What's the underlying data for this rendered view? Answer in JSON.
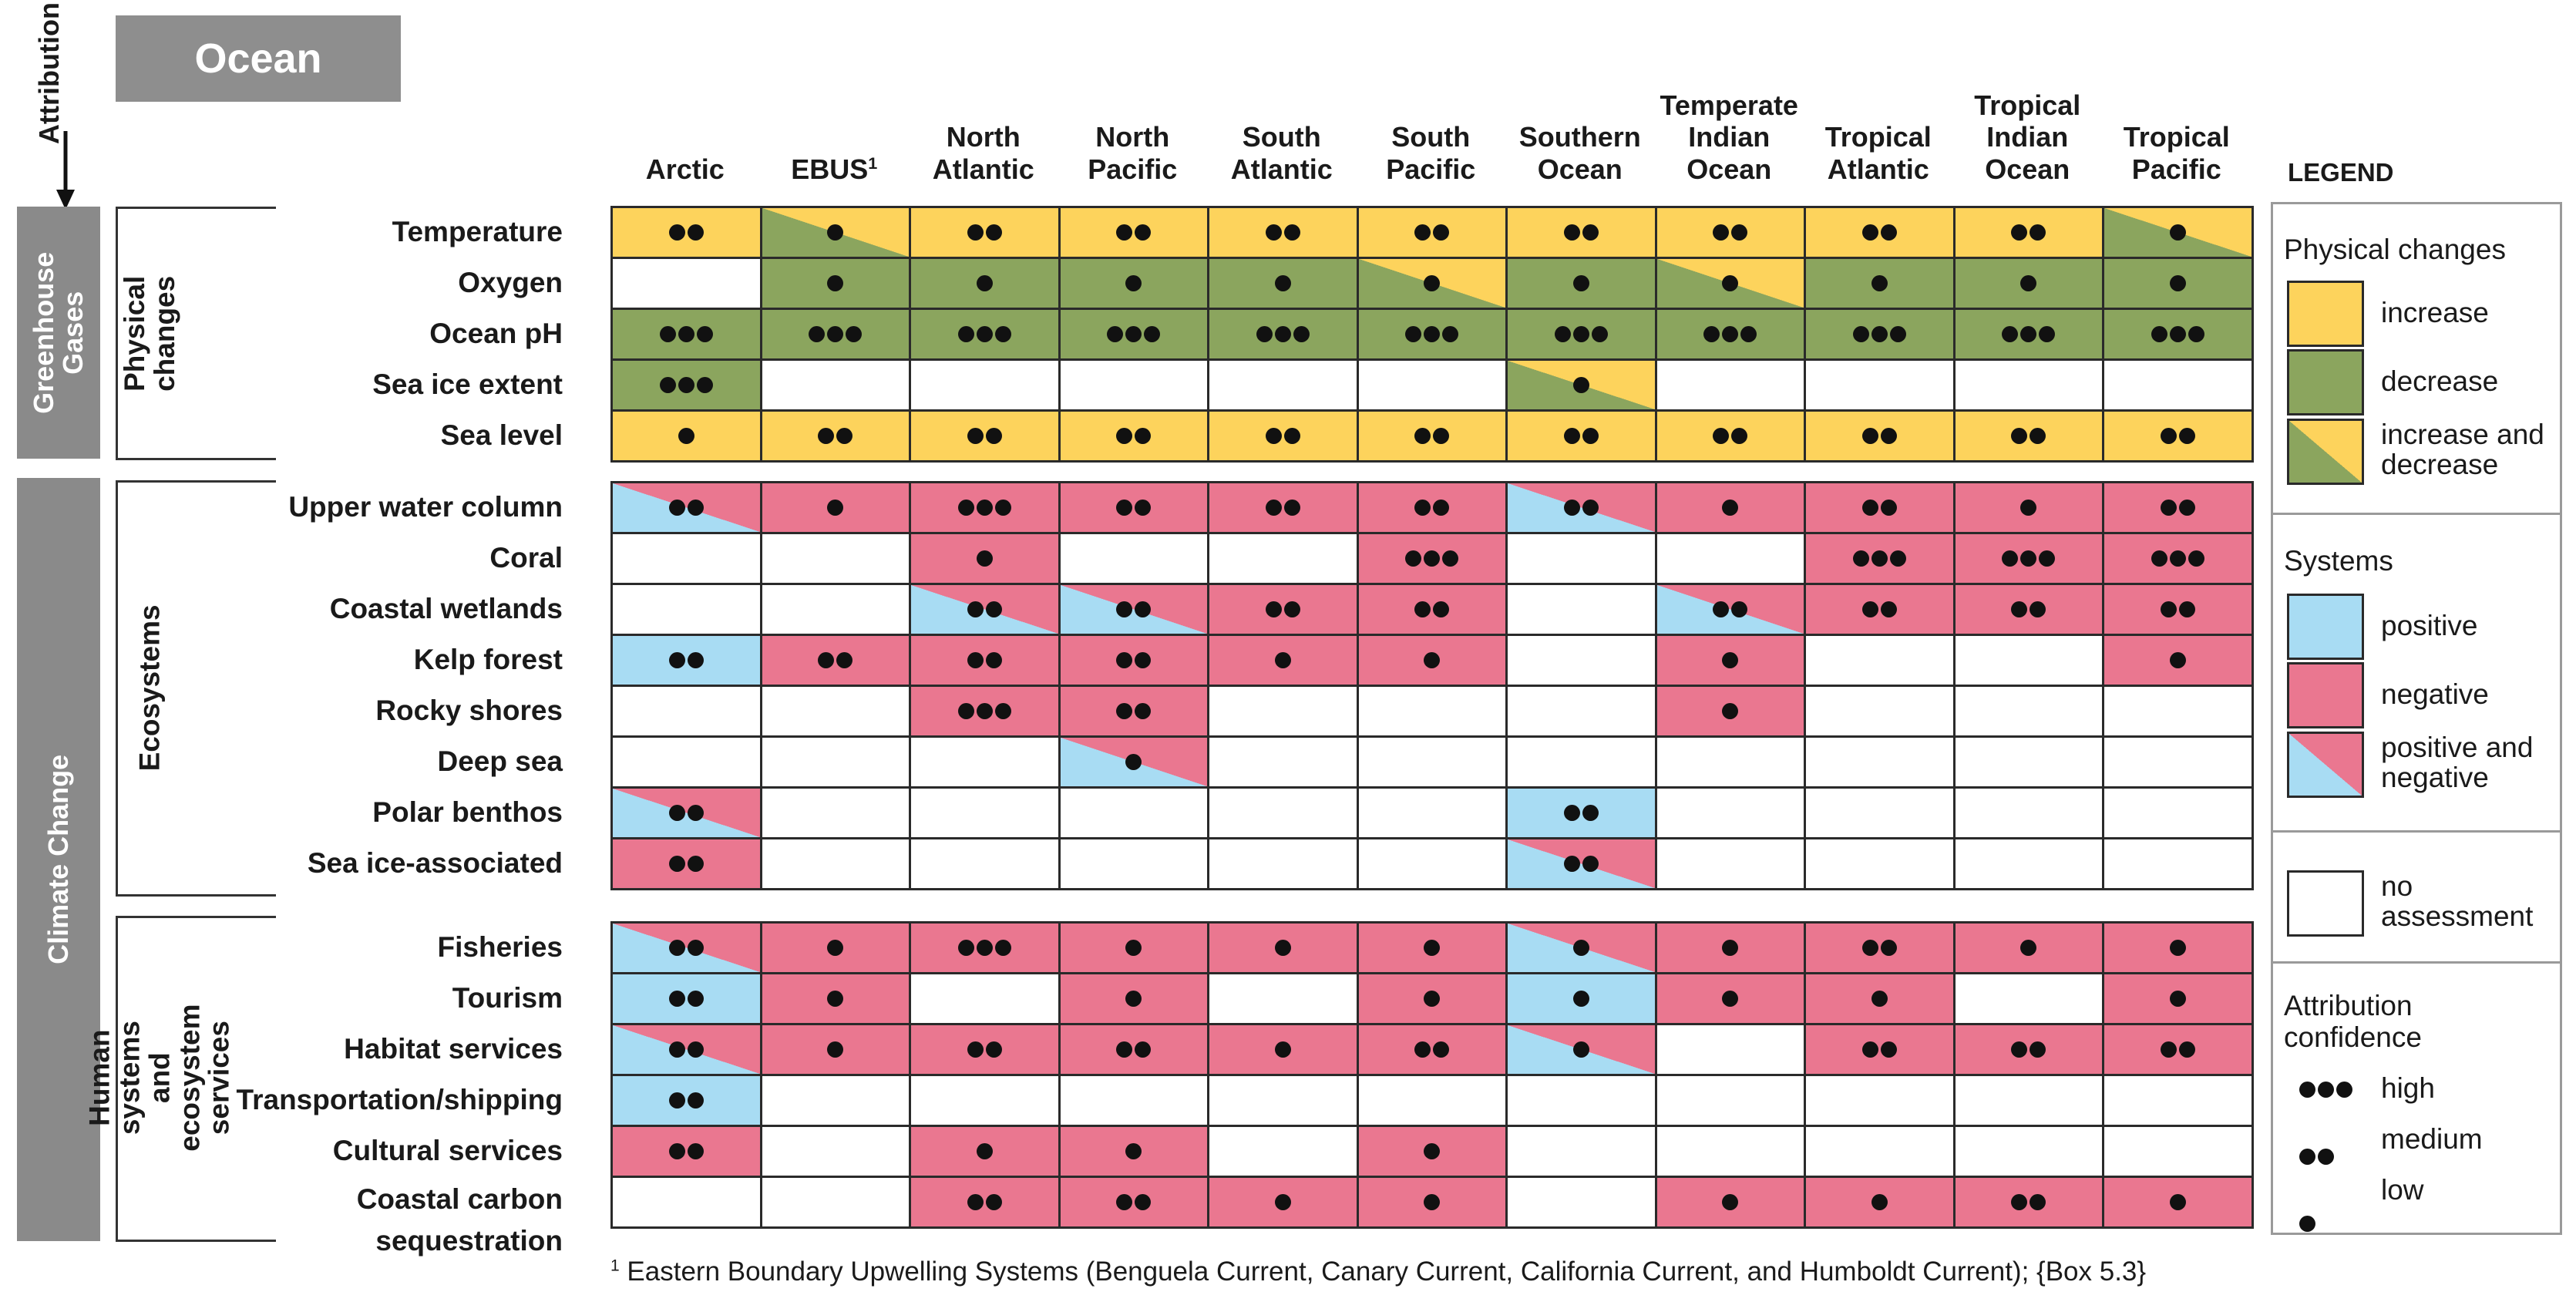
{
  "title": "Ocean",
  "attribution_label": "Attribution",
  "drivers": [
    "Greenhouse Gases",
    "Climate Change"
  ],
  "categories": [
    "Physical changes",
    "Ecosystems",
    "Human systems and ecosystem services"
  ],
  "regions": [
    {
      "label": "Arctic",
      "sup": ""
    },
    {
      "label": "EBUS",
      "sup": "1"
    },
    {
      "label": "North Atlantic",
      "sup": ""
    },
    {
      "label": "North Pacific",
      "sup": ""
    },
    {
      "label": "South Atlantic",
      "sup": ""
    },
    {
      "label": "South Pacific",
      "sup": ""
    },
    {
      "label": "Southern Ocean",
      "sup": ""
    },
    {
      "label": "Temperate Indian Ocean",
      "sup": ""
    },
    {
      "label": "Tropical Atlantic",
      "sup": ""
    },
    {
      "label": "Tropical Indian Ocean",
      "sup": ""
    },
    {
      "label": "Tropical Pacific",
      "sup": ""
    }
  ],
  "color_key": {
    "I": "increase",
    "D": "decrease",
    "ID": "increase and decrease",
    "P": "positive",
    "N": "negative",
    "PN": "positive and negative",
    "-": "no assessment"
  },
  "colors": {
    "increase": "#fdd35c",
    "decrease": "#8ba55e",
    "positive": "#a8dcf3",
    "negative": "#ea7790",
    "none": "#ffffff",
    "gray_bar": "#8a8a8a"
  },
  "groups": [
    {
      "category": "Physical changes",
      "rows": [
        {
          "label": "Temperature",
          "cells": [
            [
              "I",
              2
            ],
            [
              "ID",
              1
            ],
            [
              "I",
              2
            ],
            [
              "I",
              2
            ],
            [
              "I",
              2
            ],
            [
              "I",
              2
            ],
            [
              "I",
              2
            ],
            [
              "I",
              2
            ],
            [
              "I",
              2
            ],
            [
              "I",
              2
            ],
            [
              "ID",
              1
            ]
          ]
        },
        {
          "label": "Oxygen",
          "cells": [
            [
              "-",
              0
            ],
            [
              "D",
              1
            ],
            [
              "D",
              1
            ],
            [
              "D",
              1
            ],
            [
              "D",
              1
            ],
            [
              "ID",
              1
            ],
            [
              "D",
              1
            ],
            [
              "ID",
              1
            ],
            [
              "D",
              1
            ],
            [
              "D",
              1
            ],
            [
              "D",
              1
            ]
          ]
        },
        {
          "label": "Ocean pH",
          "cells": [
            [
              "D",
              3
            ],
            [
              "D",
              3
            ],
            [
              "D",
              3
            ],
            [
              "D",
              3
            ],
            [
              "D",
              3
            ],
            [
              "D",
              3
            ],
            [
              "D",
              3
            ],
            [
              "D",
              3
            ],
            [
              "D",
              3
            ],
            [
              "D",
              3
            ],
            [
              "D",
              3
            ]
          ]
        },
        {
          "label": "Sea ice extent",
          "cells": [
            [
              "D",
              3
            ],
            [
              "-",
              0
            ],
            [
              "-",
              0
            ],
            [
              "-",
              0
            ],
            [
              "-",
              0
            ],
            [
              "-",
              0
            ],
            [
              "ID",
              1
            ],
            [
              "-",
              0
            ],
            [
              "-",
              0
            ],
            [
              "-",
              0
            ],
            [
              "-",
              0
            ]
          ]
        },
        {
          "label": "Sea level",
          "cells": [
            [
              "I",
              1
            ],
            [
              "I",
              2
            ],
            [
              "I",
              2
            ],
            [
              "I",
              2
            ],
            [
              "I",
              2
            ],
            [
              "I",
              2
            ],
            [
              "I",
              2
            ],
            [
              "I",
              2
            ],
            [
              "I",
              2
            ],
            [
              "I",
              2
            ],
            [
              "I",
              2
            ]
          ]
        }
      ]
    },
    {
      "category": "Ecosystems",
      "rows": [
        {
          "label": "Upper water column",
          "cells": [
            [
              "PN",
              2
            ],
            [
              "N",
              1
            ],
            [
              "N",
              3
            ],
            [
              "N",
              2
            ],
            [
              "N",
              2
            ],
            [
              "N",
              2
            ],
            [
              "PN",
              2
            ],
            [
              "N",
              1
            ],
            [
              "N",
              2
            ],
            [
              "N",
              1
            ],
            [
              "N",
              2
            ]
          ]
        },
        {
          "label": "Coral",
          "cells": [
            [
              "-",
              0
            ],
            [
              "-",
              0
            ],
            [
              "N",
              1
            ],
            [
              "-",
              0
            ],
            [
              "-",
              0
            ],
            [
              "N",
              3
            ],
            [
              "-",
              0
            ],
            [
              "-",
              0
            ],
            [
              "N",
              3
            ],
            [
              "N",
              3
            ],
            [
              "N",
              3
            ]
          ]
        },
        {
          "label": "Coastal wetlands",
          "cells": [
            [
              "-",
              0
            ],
            [
              "-",
              0
            ],
            [
              "PN",
              2
            ],
            [
              "PN",
              2
            ],
            [
              "N",
              2
            ],
            [
              "N",
              2
            ],
            [
              "-",
              0
            ],
            [
              "PN",
              2
            ],
            [
              "N",
              2
            ],
            [
              "N",
              2
            ],
            [
              "N",
              2
            ]
          ]
        },
        {
          "label": "Kelp forest",
          "cells": [
            [
              "P",
              2
            ],
            [
              "N",
              2
            ],
            [
              "N",
              2
            ],
            [
              "N",
              2
            ],
            [
              "N",
              1
            ],
            [
              "N",
              1
            ],
            [
              "-",
              0
            ],
            [
              "N",
              1
            ],
            [
              "-",
              0
            ],
            [
              "-",
              0
            ],
            [
              "N",
              1
            ]
          ]
        },
        {
          "label": "Rocky shores",
          "cells": [
            [
              "-",
              0
            ],
            [
              "-",
              0
            ],
            [
              "N",
              3
            ],
            [
              "N",
              2
            ],
            [
              "-",
              0
            ],
            [
              "-",
              0
            ],
            [
              "-",
              0
            ],
            [
              "N",
              1
            ],
            [
              "-",
              0
            ],
            [
              "-",
              0
            ],
            [
              "-",
              0
            ]
          ]
        },
        {
          "label": "Deep sea",
          "cells": [
            [
              "-",
              0
            ],
            [
              "-",
              0
            ],
            [
              "-",
              0
            ],
            [
              "PN",
              1
            ],
            [
              "-",
              0
            ],
            [
              "-",
              0
            ],
            [
              "-",
              0
            ],
            [
              "-",
              0
            ],
            [
              "-",
              0
            ],
            [
              "-",
              0
            ],
            [
              "-",
              0
            ]
          ]
        },
        {
          "label": "Polar benthos",
          "cells": [
            [
              "PN",
              2
            ],
            [
              "-",
              0
            ],
            [
              "-",
              0
            ],
            [
              "-",
              0
            ],
            [
              "-",
              0
            ],
            [
              "-",
              0
            ],
            [
              "P",
              2
            ],
            [
              "-",
              0
            ],
            [
              "-",
              0
            ],
            [
              "-",
              0
            ],
            [
              "-",
              0
            ]
          ]
        },
        {
          "label": "Sea ice-associated",
          "cells": [
            [
              "N",
              2
            ],
            [
              "-",
              0
            ],
            [
              "-",
              0
            ],
            [
              "-",
              0
            ],
            [
              "-",
              0
            ],
            [
              "-",
              0
            ],
            [
              "PN",
              2
            ],
            [
              "-",
              0
            ],
            [
              "-",
              0
            ],
            [
              "-",
              0
            ],
            [
              "-",
              0
            ]
          ]
        }
      ]
    },
    {
      "category": "Human systems and ecosystem services",
      "rows": [
        {
          "label": "Fisheries",
          "cells": [
            [
              "PN",
              2
            ],
            [
              "N",
              1
            ],
            [
              "N",
              3
            ],
            [
              "N",
              1
            ],
            [
              "N",
              1
            ],
            [
              "N",
              1
            ],
            [
              "PN",
              1
            ],
            [
              "N",
              1
            ],
            [
              "N",
              2
            ],
            [
              "N",
              1
            ],
            [
              "N",
              1
            ]
          ]
        },
        {
          "label": "Tourism",
          "cells": [
            [
              "P",
              2
            ],
            [
              "N",
              1
            ],
            [
              "-",
              0
            ],
            [
              "N",
              1
            ],
            [
              "-",
              0
            ],
            [
              "N",
              1
            ],
            [
              "P",
              1
            ],
            [
              "N",
              1
            ],
            [
              "N",
              1
            ],
            [
              "-",
              0
            ],
            [
              "N",
              1
            ]
          ]
        },
        {
          "label": "Habitat services",
          "cells": [
            [
              "PN",
              2
            ],
            [
              "N",
              1
            ],
            [
              "N",
              2
            ],
            [
              "N",
              2
            ],
            [
              "N",
              1
            ],
            [
              "N",
              2
            ],
            [
              "PN",
              1
            ],
            [
              "-",
              0
            ],
            [
              "N",
              2
            ],
            [
              "N",
              2
            ],
            [
              "N",
              2
            ]
          ]
        },
        {
          "label": "Transportation/shipping",
          "cells": [
            [
              "P",
              2
            ],
            [
              "-",
              0
            ],
            [
              "-",
              0
            ],
            [
              "-",
              0
            ],
            [
              "-",
              0
            ],
            [
              "-",
              0
            ],
            [
              "-",
              0
            ],
            [
              "-",
              0
            ],
            [
              "-",
              0
            ],
            [
              "-",
              0
            ],
            [
              "-",
              0
            ]
          ]
        },
        {
          "label": "Cultural services",
          "cells": [
            [
              "N",
              2
            ],
            [
              "-",
              0
            ],
            [
              "N",
              1
            ],
            [
              "N",
              1
            ],
            [
              "-",
              0
            ],
            [
              "N",
              1
            ],
            [
              "-",
              0
            ],
            [
              "-",
              0
            ],
            [
              "-",
              0
            ],
            [
              "-",
              0
            ],
            [
              "-",
              0
            ]
          ]
        },
        {
          "label": "Coastal carbon sequestration",
          "cells": [
            [
              "-",
              0
            ],
            [
              "-",
              0
            ],
            [
              "N",
              2
            ],
            [
              "N",
              2
            ],
            [
              "N",
              1
            ],
            [
              "N",
              1
            ],
            [
              "-",
              0
            ],
            [
              "N",
              1
            ],
            [
              "N",
              1
            ],
            [
              "N",
              2
            ],
            [
              "N",
              1
            ]
          ]
        }
      ]
    }
  ],
  "legend": {
    "title": "LEGEND",
    "physical_title": "Physical changes",
    "physical_items": [
      "increase",
      "decrease",
      "increase and decrease"
    ],
    "systems_title": "Systems",
    "systems_items": [
      "positive",
      "negative",
      "positive and negative"
    ],
    "no_assessment": "no assessment",
    "confidence_title": "Attribution confidence",
    "confidence_items": [
      {
        "dots": 3,
        "label": "high"
      },
      {
        "dots": 2,
        "label": "medium"
      },
      {
        "dots": 1,
        "label": "low"
      }
    ]
  },
  "footnote": {
    "marker": "1",
    "text": "Eastern Boundary Upwelling Systems (Benguela Current, Canary Current, California Current, and Humboldt Current); {Box 5.3}"
  }
}
